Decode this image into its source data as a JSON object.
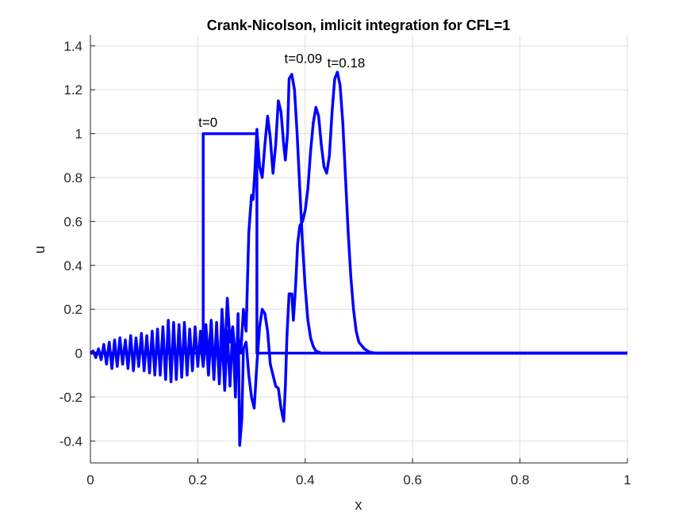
{
  "chart_data": {
    "type": "line",
    "title": "Crank-Nicolson, imlicit integration for CFL=1",
    "xlabel": "x",
    "ylabel": "u",
    "xlim": [
      0,
      1
    ],
    "ylim": [
      -0.5,
      1.45
    ],
    "xticks": [
      0,
      0.2,
      0.4,
      0.6,
      0.8,
      1
    ],
    "xtick_labels": [
      "0",
      "0.2",
      "0.4",
      "0.6",
      "0.8",
      "1"
    ],
    "yticks": [
      -0.4,
      -0.2,
      0,
      0.2,
      0.4,
      0.6,
      0.8,
      1,
      1.2,
      1.4
    ],
    "ytick_labels": [
      "-0.4",
      "-0.2",
      "0",
      "0.2",
      "0.4",
      "0.6",
      "0.8",
      "1",
      "1.2",
      "1.4"
    ],
    "grid": true,
    "color": "#0000ff",
    "series": [
      {
        "points": [
          [
            0,
            0
          ],
          [
            0.21,
            0
          ],
          [
            0.21,
            1
          ],
          [
            0.31,
            1
          ],
          [
            0.31,
            0
          ],
          [
            1,
            0
          ]
        ]
      },
      {
        "points": [
          [
            0,
            0
          ],
          [
            0.005,
            0.01
          ],
          [
            0.01,
            -0.02
          ],
          [
            0.015,
            0.02
          ],
          [
            0.02,
            -0.03
          ],
          [
            0.025,
            0.04
          ],
          [
            0.03,
            -0.05
          ],
          [
            0.035,
            0.05
          ],
          [
            0.04,
            -0.07
          ],
          [
            0.045,
            0.06
          ],
          [
            0.05,
            -0.06
          ],
          [
            0.055,
            0.07
          ],
          [
            0.06,
            -0.05
          ],
          [
            0.065,
            0.06
          ],
          [
            0.07,
            -0.07
          ],
          [
            0.075,
            0.08
          ],
          [
            0.08,
            -0.08
          ],
          [
            0.085,
            0.07
          ],
          [
            0.09,
            -0.06
          ],
          [
            0.095,
            0.09
          ],
          [
            0.1,
            -0.08
          ],
          [
            0.105,
            0.08
          ],
          [
            0.11,
            -0.09
          ],
          [
            0.115,
            0.1
          ],
          [
            0.12,
            -0.1
          ],
          [
            0.125,
            0.11
          ],
          [
            0.13,
            -0.1
          ],
          [
            0.135,
            0.12
          ],
          [
            0.14,
            -0.12
          ],
          [
            0.145,
            0.15
          ],
          [
            0.15,
            -0.13
          ],
          [
            0.155,
            0.14
          ],
          [
            0.16,
            -0.12
          ],
          [
            0.165,
            0.13
          ],
          [
            0.17,
            -0.11
          ],
          [
            0.175,
            0.14
          ],
          [
            0.18,
            -0.1
          ],
          [
            0.185,
            0.11
          ],
          [
            0.19,
            -0.08
          ],
          [
            0.195,
            0.12
          ],
          [
            0.2,
            -0.06
          ],
          [
            0.205,
            0.1
          ],
          [
            0.21,
            -0.05
          ],
          [
            0.215,
            0.13
          ],
          [
            0.22,
            -0.04
          ],
          [
            0.225,
            0.15
          ],
          [
            0.23,
            -0.08
          ],
          [
            0.235,
            0.1
          ],
          [
            0.24,
            -0.12
          ],
          [
            0.245,
            0.2
          ],
          [
            0.25,
            -0.03
          ],
          [
            0.255,
            0.25
          ],
          [
            0.26,
            0.05
          ],
          [
            0.265,
            0.12
          ],
          [
            0.27,
            -0.02
          ],
          [
            0.275,
            0.08
          ],
          [
            0.28,
            0.0
          ],
          [
            0.285,
            0.2
          ],
          [
            0.29,
            0.1
          ],
          [
            0.295,
            0.55
          ],
          [
            0.3,
            0.72
          ],
          [
            0.303,
            0.7
          ],
          [
            0.306,
            0.82
          ],
          [
            0.31,
            1.02
          ],
          [
            0.315,
            0.85
          ],
          [
            0.32,
            0.8
          ],
          [
            0.325,
            0.95
          ],
          [
            0.33,
            1.08
          ],
          [
            0.335,
            0.98
          ],
          [
            0.34,
            0.82
          ],
          [
            0.345,
            0.95
          ],
          [
            0.35,
            1.15
          ],
          [
            0.355,
            1.1
          ],
          [
            0.36,
            0.95
          ],
          [
            0.363,
            0.88
          ],
          [
            0.367,
            1.0
          ],
          [
            0.37,
            1.25
          ],
          [
            0.375,
            1.27
          ],
          [
            0.38,
            1.2
          ],
          [
            0.385,
            1.0
          ],
          [
            0.39,
            0.75
          ],
          [
            0.395,
            0.5
          ],
          [
            0.4,
            0.3
          ],
          [
            0.405,
            0.15
          ],
          [
            0.41,
            0.07
          ],
          [
            0.415,
            0.03
          ],
          [
            0.42,
            0.01
          ],
          [
            0.43,
            0
          ],
          [
            1,
            0
          ]
        ]
      },
      {
        "points": [
          [
            0.2,
            0
          ],
          [
            0.205,
            0.05
          ],
          [
            0.21,
            -0.06
          ],
          [
            0.215,
            0.08
          ],
          [
            0.22,
            -0.1
          ],
          [
            0.225,
            0.1
          ],
          [
            0.23,
            -0.12
          ],
          [
            0.235,
            0.14
          ],
          [
            0.24,
            -0.14
          ],
          [
            0.245,
            0.1
          ],
          [
            0.25,
            -0.17
          ],
          [
            0.255,
            0.1
          ],
          [
            0.26,
            -0.15
          ],
          [
            0.265,
            0.12
          ],
          [
            0.27,
            -0.2
          ],
          [
            0.275,
            0.18
          ],
          [
            0.278,
            -0.42
          ],
          [
            0.282,
            -0.3
          ],
          [
            0.285,
            0.02
          ],
          [
            0.29,
            0.05
          ],
          [
            0.295,
            -0.1
          ],
          [
            0.3,
            -0.2
          ],
          [
            0.305,
            -0.25
          ],
          [
            0.31,
            -0.05
          ],
          [
            0.315,
            0.12
          ],
          [
            0.32,
            0.2
          ],
          [
            0.325,
            0.18
          ],
          [
            0.33,
            0.1
          ],
          [
            0.335,
            -0.05
          ],
          [
            0.34,
            -0.1
          ],
          [
            0.345,
            -0.15
          ],
          [
            0.35,
            -0.16
          ],
          [
            0.355,
            -0.25
          ],
          [
            0.36,
            -0.31
          ],
          [
            0.363,
            -0.15
          ],
          [
            0.366,
            0.08
          ],
          [
            0.37,
            0.27
          ],
          [
            0.375,
            0.27
          ],
          [
            0.378,
            0.15
          ],
          [
            0.382,
            0.3
          ],
          [
            0.386,
            0.5
          ],
          [
            0.39,
            0.58
          ],
          [
            0.395,
            0.6
          ],
          [
            0.4,
            0.65
          ],
          [
            0.405,
            0.75
          ],
          [
            0.41,
            0.92
          ],
          [
            0.415,
            1.05
          ],
          [
            0.42,
            1.12
          ],
          [
            0.425,
            1.08
          ],
          [
            0.43,
            0.95
          ],
          [
            0.435,
            0.85
          ],
          [
            0.44,
            0.82
          ],
          [
            0.445,
            0.9
          ],
          [
            0.45,
            1.1
          ],
          [
            0.455,
            1.25
          ],
          [
            0.46,
            1.28
          ],
          [
            0.465,
            1.22
          ],
          [
            0.47,
            1.05
          ],
          [
            0.475,
            0.8
          ],
          [
            0.48,
            0.55
          ],
          [
            0.485,
            0.35
          ],
          [
            0.49,
            0.2
          ],
          [
            0.495,
            0.1
          ],
          [
            0.5,
            0.05
          ],
          [
            0.51,
            0.02
          ],
          [
            0.52,
            0.005
          ],
          [
            0.53,
            0
          ],
          [
            1,
            0
          ]
        ]
      }
    ],
    "annotations": [
      {
        "text": "t=0",
        "x": 0.21,
        "y": 1.01
      },
      {
        "text": "t=0.09",
        "x": 0.37,
        "y": 1.3
      },
      {
        "text": "t=0.18",
        "x": 0.45,
        "y": 1.28
      }
    ]
  }
}
